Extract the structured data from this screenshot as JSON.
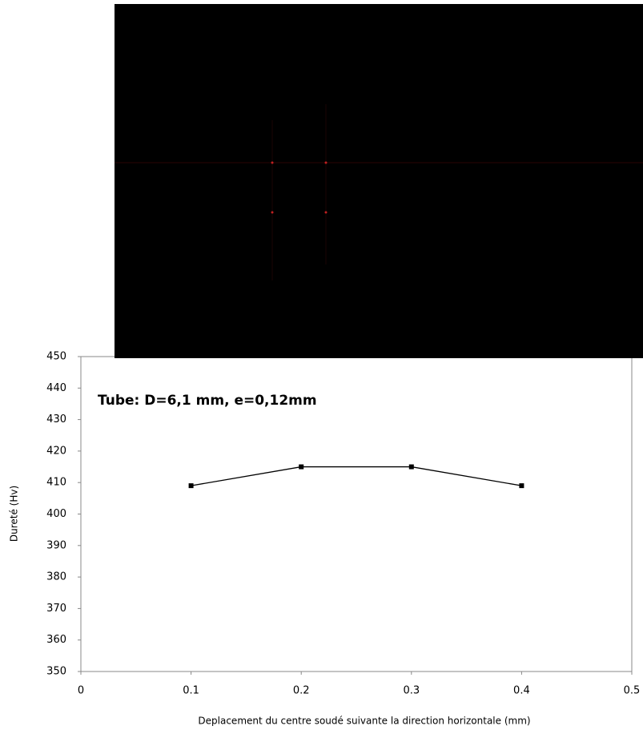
{
  "chart_data": {
    "type": "line",
    "annotation": "Tube: D=6,1 mm, e=0,12mm",
    "x_label": "Deplacement du centre soudé suivante la direction horizontale (mm)",
    "y_label": "Dureté (Hv)",
    "x": [
      0.1,
      0.2,
      0.3,
      0.4
    ],
    "series": [
      {
        "color": "#000000",
        "values": [
          409,
          415,
          415,
          409
        ]
      }
    ],
    "xlim": [
      0,
      0.5
    ],
    "xticks": [
      0,
      0.1,
      0.2,
      0.3,
      0.4,
      0.5
    ],
    "ylim": [
      350,
      450
    ],
    "yticks": [
      350,
      360,
      370,
      380,
      390,
      400,
      410,
      420,
      430,
      440,
      450
    ]
  }
}
